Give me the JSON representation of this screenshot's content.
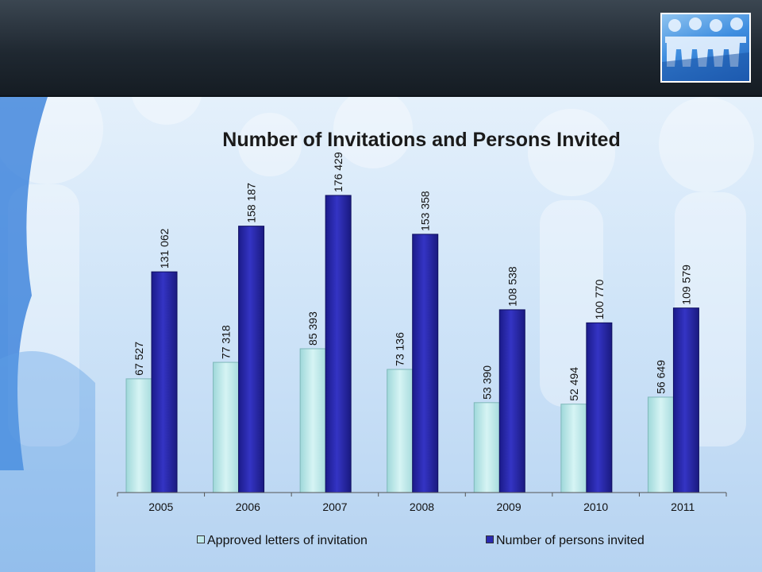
{
  "colors": {
    "approved": "#bfe9ea",
    "persons": "#2a2ab0",
    "header": "#1f2831",
    "axis": "#555555"
  },
  "logo": {
    "icon": "paper-people-logo-icon"
  },
  "chart_data": {
    "type": "bar",
    "title": "Number of Invitations and Persons Invited",
    "categories": [
      "2005",
      "2006",
      "2007",
      "2008",
      "2009",
      "2010",
      "2011"
    ],
    "series": [
      {
        "name": "Approved letters of invitation",
        "values": [
          67527,
          77318,
          85393,
          73136,
          53390,
          52494,
          56649
        ],
        "labels": [
          "67 527",
          "77 318",
          "85 393",
          "73 136",
          "53 390",
          "52 494",
          "56 649"
        ]
      },
      {
        "name": "Number of persons invited",
        "values": [
          131062,
          158187,
          176429,
          153358,
          108538,
          100770,
          109579
        ],
        "labels": [
          "131 062",
          "158 187",
          "176 429",
          "153 358",
          "108 538",
          "100 770",
          "109 579"
        ]
      }
    ],
    "ylim": [
      0,
      200000
    ],
    "grid": false,
    "legend": "bottom"
  }
}
